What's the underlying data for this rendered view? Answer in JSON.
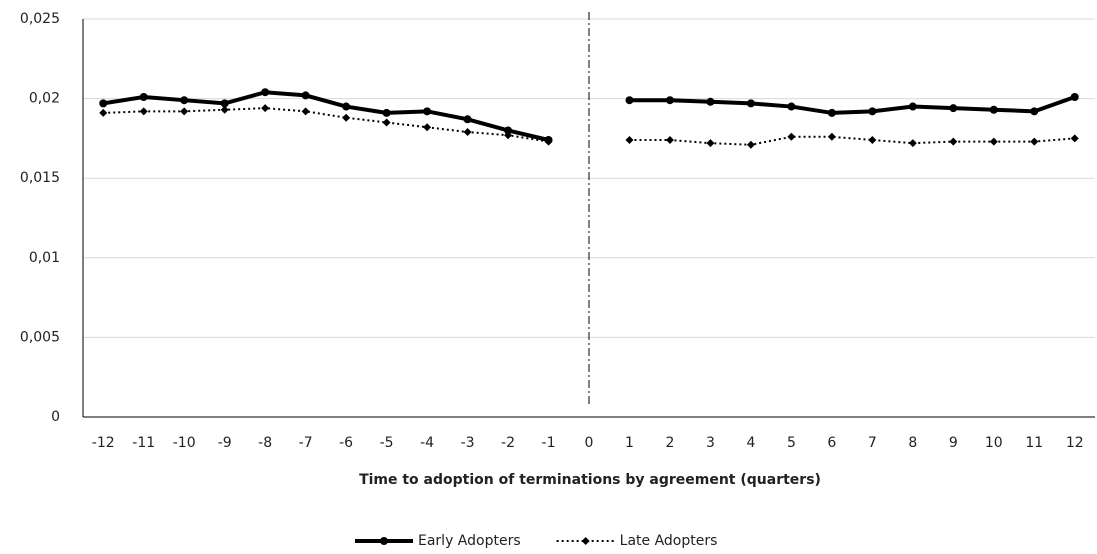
{
  "chart_data": {
    "type": "line",
    "x_label": "Time to adoption of terminations by agreement (quarters)",
    "categories": [
      "-12",
      "-11",
      "-10",
      "-9",
      "-8",
      "-7",
      "-6",
      "-5",
      "-4",
      "-3",
      "-2",
      "-1",
      "0",
      "1",
      "2",
      "3",
      "4",
      "5",
      "6",
      "7",
      "8",
      "9",
      "10",
      "11",
      "12"
    ],
    "series": [
      {
        "name": "Early Adopters",
        "color": "#000000",
        "style": "solid",
        "marker": "circle",
        "values": [
          0.0197,
          0.0201,
          0.0199,
          0.0197,
          0.0204,
          0.0202,
          0.0195,
          0.0191,
          0.0192,
          0.0187,
          0.018,
          0.0174,
          null,
          0.0199,
          0.0199,
          0.0198,
          0.0197,
          0.0195,
          0.0191,
          0.0192,
          0.0195,
          0.0194,
          0.0193,
          0.0192,
          0.0201
        ]
      },
      {
        "name": "Late Adopters",
        "color": "#000000",
        "style": "dotted",
        "marker": "diamond",
        "values": [
          0.0191,
          0.0192,
          0.0192,
          0.0193,
          0.0194,
          0.0192,
          0.0188,
          0.0185,
          0.0182,
          0.0179,
          0.0177,
          0.0173,
          null,
          0.0174,
          0.0174,
          0.0172,
          0.0171,
          0.0176,
          0.0176,
          0.0174,
          0.0172,
          0.0173,
          0.0173,
          0.0173,
          0.0175
        ]
      }
    ],
    "ylim": [
      0,
      0.025
    ],
    "yticks": [
      0,
      {
        "value": 0.005,
        "label": "0,005"
      },
      {
        "value": 0.01,
        "label": "0,01"
      },
      {
        "value": 0.015,
        "label": "0,015"
      },
      {
        "value": 0.02,
        "label": "0,02"
      },
      {
        "value": 0.025,
        "label": "0,025"
      }
    ],
    "grid": true,
    "legend": "bottom"
  }
}
